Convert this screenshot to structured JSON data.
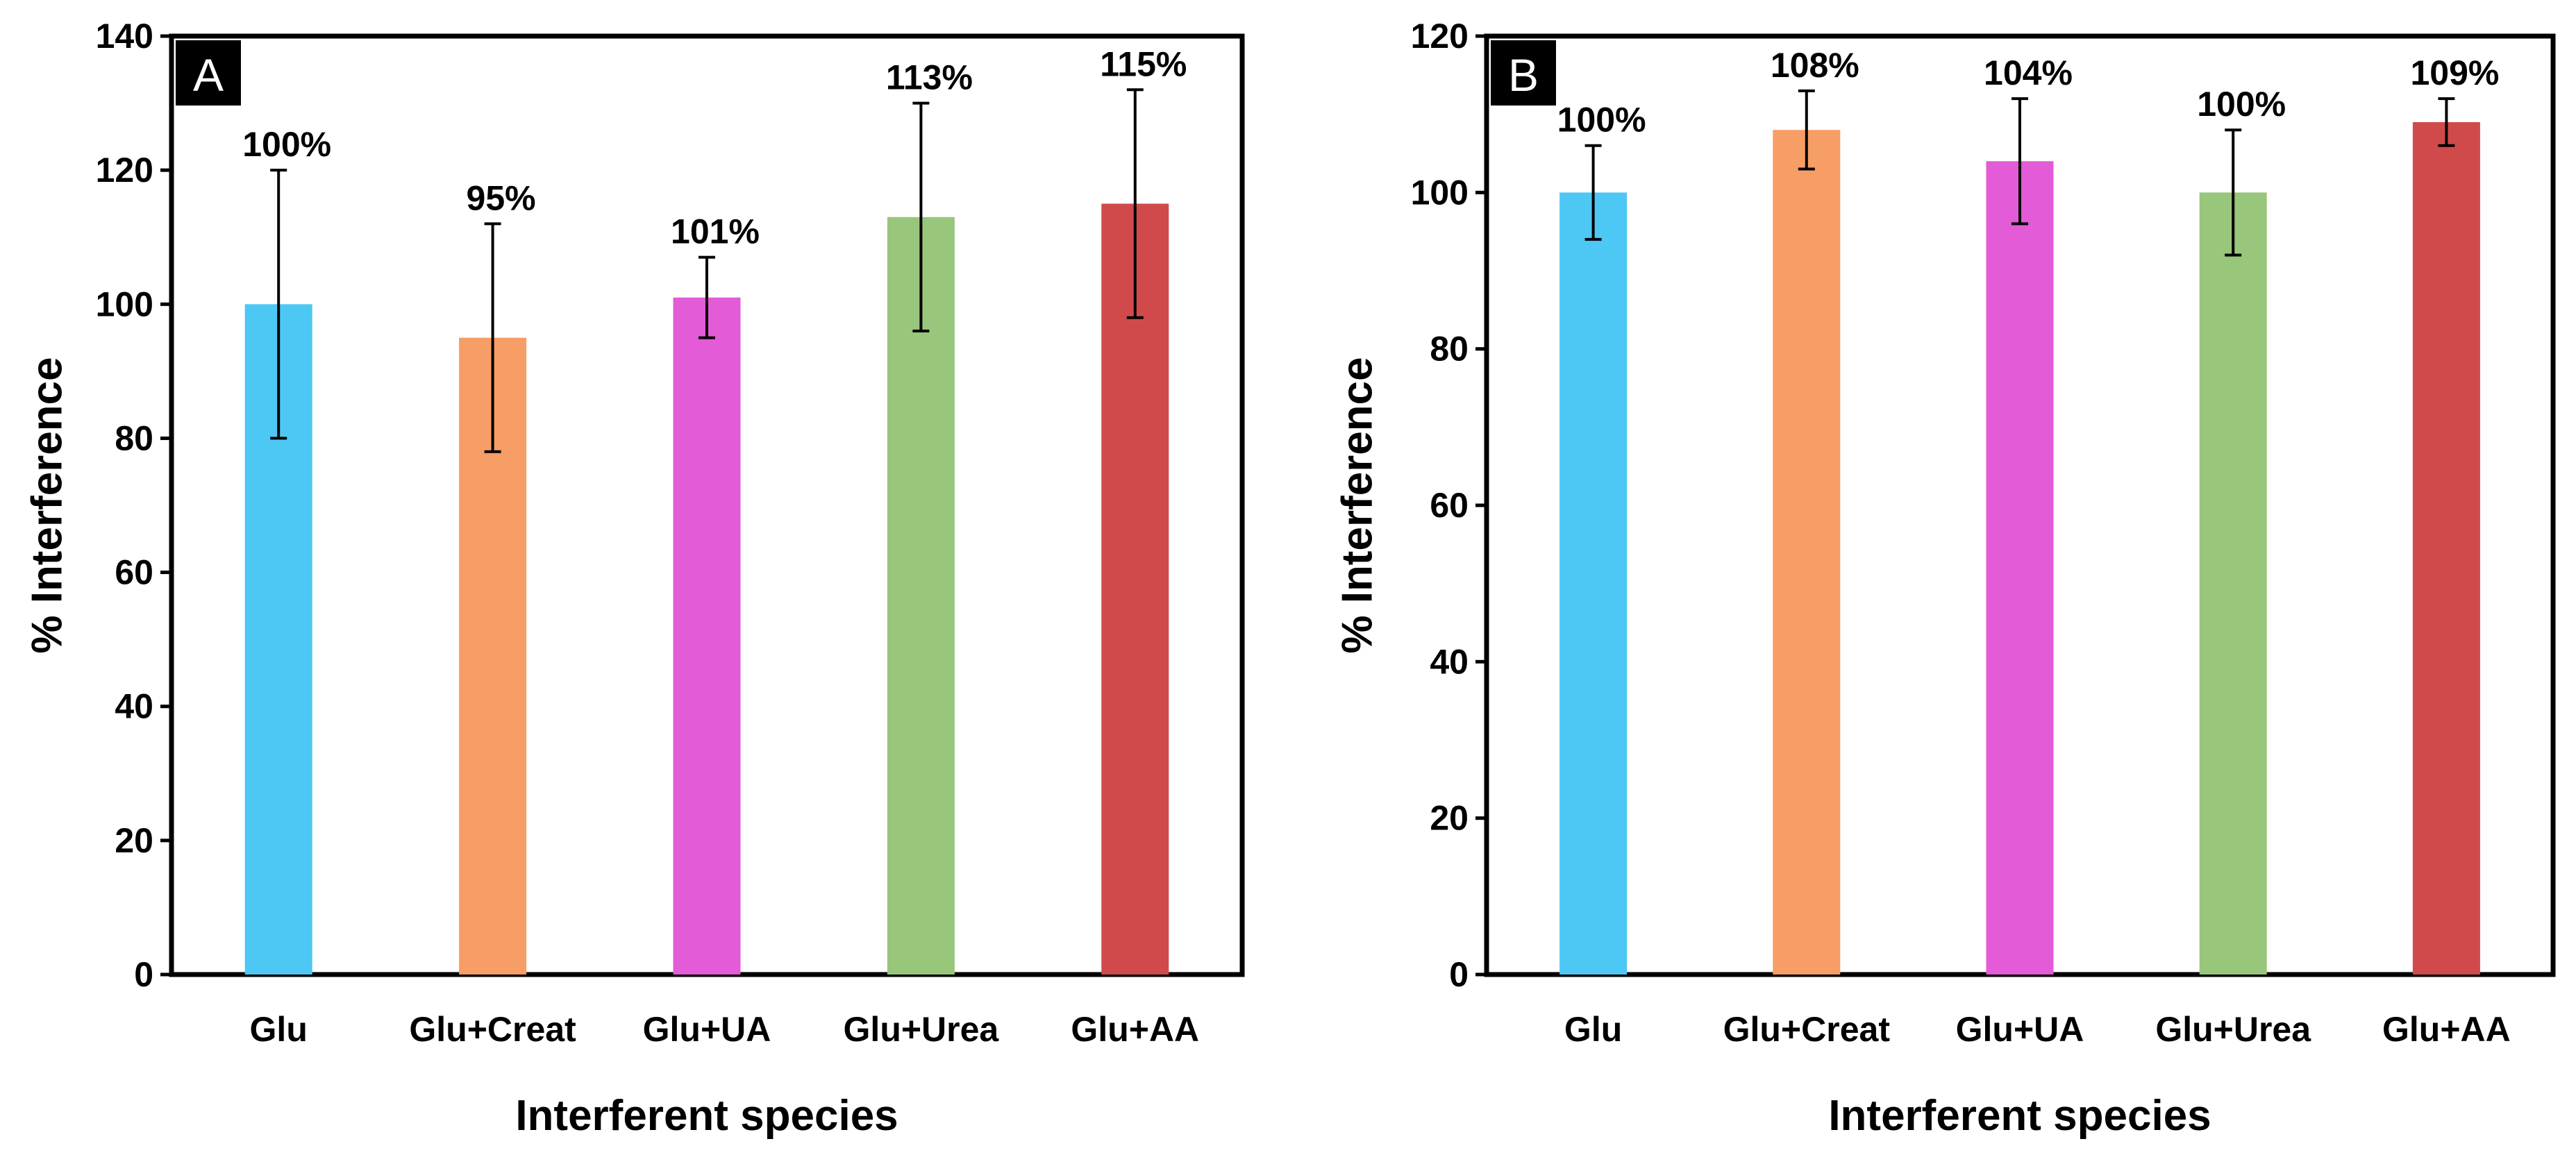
{
  "chart_data": [
    {
      "type": "bar",
      "panel_label": "A",
      "categories": [
        "Glu",
        "Glu+Creat",
        "Glu+UA",
        "Glu+Urea",
        "Glu+AA"
      ],
      "values": [
        100,
        95,
        101,
        113,
        115
      ],
      "error_low": [
        80,
        78,
        95,
        96,
        98
      ],
      "error_high": [
        120,
        112,
        107,
        130,
        132
      ],
      "data_labels": [
        "100%",
        "95%",
        "101%",
        "113%",
        "115%"
      ],
      "colors": [
        "#4DC8F4",
        "#F79D66",
        "#E35BD6",
        "#98C67A",
        "#D04A4C"
      ],
      "title": "",
      "xlabel": "Interferent species",
      "ylabel": "% Interference",
      "ylim": [
        0,
        140
      ],
      "yticks": [
        0,
        20,
        40,
        60,
        80,
        100,
        120,
        140
      ],
      "grid": false
    },
    {
      "type": "bar",
      "panel_label": "B",
      "categories": [
        "Glu",
        "Glu+Creat",
        "Glu+UA",
        "Glu+Urea",
        "Glu+AA"
      ],
      "values": [
        100,
        108,
        104,
        100,
        109
      ],
      "error_low": [
        94,
        103,
        96,
        92,
        106
      ],
      "error_high": [
        106,
        113,
        112,
        108,
        112
      ],
      "data_labels": [
        "100%",
        "108%",
        "104%",
        "100%",
        "109%"
      ],
      "colors": [
        "#4DC8F4",
        "#F79D66",
        "#E35BD6",
        "#98C67A",
        "#D04A4C"
      ],
      "title": "",
      "xlabel": "Interferent species",
      "ylabel": "% Interference",
      "ylim": [
        0,
        120
      ],
      "yticks": [
        0,
        20,
        40,
        60,
        80,
        100,
        120
      ],
      "grid": false
    }
  ]
}
